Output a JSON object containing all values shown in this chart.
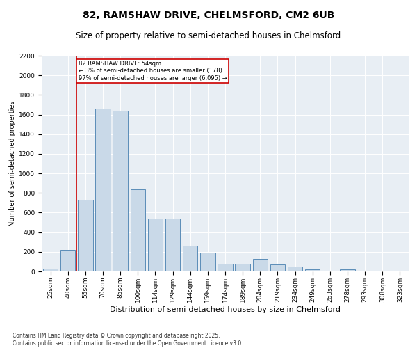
{
  "title1": "82, RAMSHAW DRIVE, CHELMSFORD, CM2 6UB",
  "title2": "Size of property relative to semi-detached houses in Chelmsford",
  "xlabel": "Distribution of semi-detached houses by size in Chelmsford",
  "ylabel": "Number of semi-detached properties",
  "categories": [
    "25sqm",
    "40sqm",
    "55sqm",
    "70sqm",
    "85sqm",
    "100sqm",
    "114sqm",
    "129sqm",
    "144sqm",
    "159sqm",
    "174sqm",
    "189sqm",
    "204sqm",
    "219sqm",
    "234sqm",
    "249sqm",
    "263sqm",
    "278sqm",
    "293sqm",
    "308sqm",
    "323sqm"
  ],
  "values": [
    30,
    220,
    730,
    1660,
    1640,
    840,
    540,
    540,
    260,
    190,
    80,
    80,
    130,
    70,
    50,
    20,
    0,
    20,
    0,
    0,
    0
  ],
  "bar_color": "#c9d9e8",
  "bar_edge_color": "#5b8db8",
  "annotation_text": "82 RAMSHAW DRIVE: 54sqm\n← 3% of semi-detached houses are smaller (178)\n97% of semi-detached houses are larger (6,095) →",
  "annotation_box_color": "#ffffff",
  "annotation_edge_color": "#cc0000",
  "vline_color": "#cc0000",
  "ylim": [
    0,
    2200
  ],
  "yticks": [
    0,
    200,
    400,
    600,
    800,
    1000,
    1200,
    1400,
    1600,
    1800,
    2000,
    2200
  ],
  "background_color": "#e8eef4",
  "footer_text": "Contains HM Land Registry data © Crown copyright and database right 2025.\nContains public sector information licensed under the Open Government Licence v3.0.",
  "title1_fontsize": 10,
  "title2_fontsize": 8.5,
  "xlabel_fontsize": 8,
  "ylabel_fontsize": 7,
  "tick_fontsize": 6.5,
  "footer_fontsize": 5.5
}
